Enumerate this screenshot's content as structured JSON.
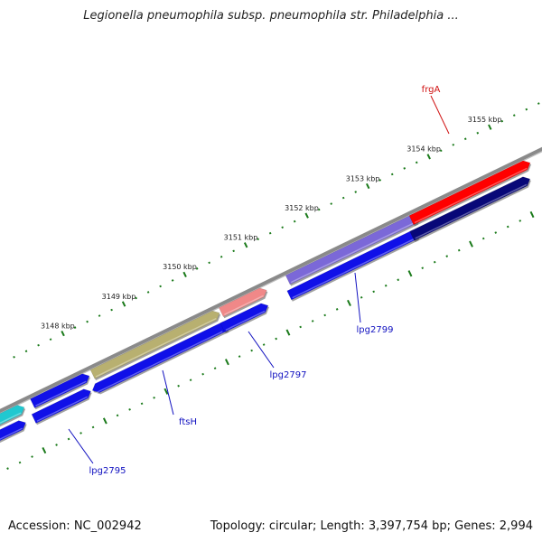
{
  "title": "Legionella pneumophila subsp. pneumophila str. Philadelphia ...",
  "footer": {
    "accession": "Accession: NC_002942",
    "summary": "Topology: circular; Length: 3,397,754 bp; Genes: 2,994"
  },
  "colors": {
    "backbone": "#8a8a8a",
    "tick": "#1a7a1a",
    "gene_blue": "#1010e8",
    "gene_navy": "#080878",
    "gene_red": "#ff0000",
    "gene_purple": "#7b68d8",
    "gene_pink": "#f08888",
    "gene_olive": "#b8b070",
    "gene_cyan": "#20c8d0",
    "label_blue": "#1010c0",
    "label_red": "#d01010"
  },
  "ticks": [
    {
      "label": "3148 kbp"
    },
    {
      "label": "3149 kbp"
    },
    {
      "label": "3150 kbp"
    },
    {
      "label": "3151 kbp"
    },
    {
      "label": "3152 kbp"
    },
    {
      "label": "3153 kbp"
    },
    {
      "label": "3154 kbp"
    },
    {
      "label": "3155 kbp"
    }
  ],
  "gene_labels": [
    {
      "text": "frgA",
      "color": "#d01010"
    },
    {
      "text": "lpg2799",
      "color": "#1010c0"
    },
    {
      "text": "lpg2797",
      "color": "#1010c0"
    },
    {
      "text": "ftsH",
      "color": "#1010c0"
    },
    {
      "text": "lpg2795",
      "color": "#1010c0"
    }
  ]
}
